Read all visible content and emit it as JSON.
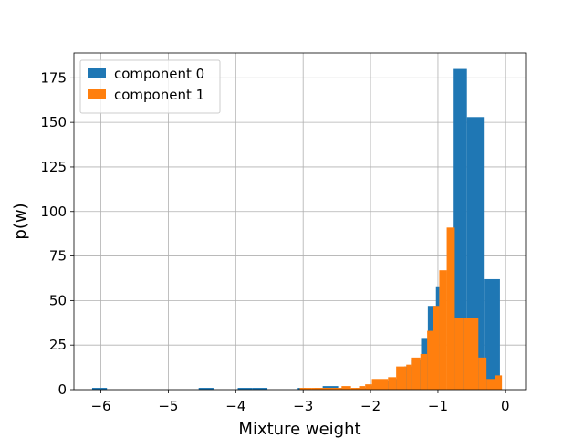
{
  "chart_data": {
    "type": "histogram",
    "xlabel": "Mixture weight",
    "ylabel": "p(w)",
    "xlim": [
      -6.4,
      0.3
    ],
    "ylim": [
      0,
      189
    ],
    "xticks": [
      -6,
      -5,
      -4,
      -3,
      -2,
      -1,
      0
    ],
    "xtick_labels": [
      "−6",
      "−5",
      "−4",
      "−3",
      "−2",
      "−1",
      "0"
    ],
    "yticks": [
      0,
      25,
      50,
      75,
      100,
      125,
      150,
      175
    ],
    "grid": true,
    "legend": {
      "position": "top-left"
    },
    "series": [
      {
        "name": "component 0",
        "color": "#1f77b4",
        "bins": [
          [
            -6.13,
            -5.91,
            1
          ],
          [
            -4.55,
            -4.33,
            1
          ],
          [
            -3.97,
            -3.75,
            1
          ],
          [
            -3.75,
            -3.53,
            1
          ],
          [
            -3.08,
            -2.96,
            1
          ],
          [
            -2.83,
            -2.71,
            1
          ],
          [
            -2.71,
            -2.48,
            2
          ],
          [
            -2.48,
            -2.35,
            1
          ],
          [
            -2.22,
            -2.03,
            1
          ],
          [
            -2.03,
            -1.93,
            2
          ],
          [
            -1.93,
            -1.71,
            5
          ],
          [
            -1.71,
            -1.5,
            6
          ],
          [
            -1.5,
            -1.4,
            13
          ],
          [
            -1.4,
            -1.25,
            17
          ],
          [
            -1.25,
            -1.15,
            29
          ],
          [
            -1.15,
            -1.03,
            47
          ],
          [
            -1.03,
            -0.98,
            58
          ],
          [
            -0.78,
            -0.57,
            180
          ],
          [
            -0.57,
            -0.32,
            153
          ],
          [
            -0.32,
            -0.08,
            62
          ]
        ]
      },
      {
        "name": "component 1",
        "color": "#ff7f0e",
        "bins": [
          [
            -3.05,
            -2.88,
            1
          ],
          [
            -2.88,
            -2.59,
            1
          ],
          [
            -2.59,
            -2.43,
            1
          ],
          [
            -2.43,
            -2.29,
            2
          ],
          [
            -2.29,
            -2.17,
            1
          ],
          [
            -2.17,
            -2.08,
            2
          ],
          [
            -2.08,
            -1.98,
            3
          ],
          [
            -1.98,
            -1.74,
            6
          ],
          [
            -1.74,
            -1.62,
            7
          ],
          [
            -1.62,
            -1.47,
            13
          ],
          [
            -1.47,
            -1.4,
            14
          ],
          [
            -1.4,
            -1.26,
            18
          ],
          [
            -1.26,
            -1.16,
            20
          ],
          [
            -1.16,
            -1.08,
            33
          ],
          [
            -1.08,
            -0.98,
            47
          ],
          [
            -0.98,
            -0.87,
            67
          ],
          [
            -0.87,
            -0.75,
            91
          ],
          [
            -0.75,
            -0.63,
            40
          ],
          [
            -0.63,
            -0.4,
            40
          ],
          [
            -0.4,
            -0.28,
            18
          ],
          [
            -0.28,
            -0.15,
            6
          ],
          [
            -0.15,
            -0.05,
            8
          ]
        ]
      }
    ]
  }
}
